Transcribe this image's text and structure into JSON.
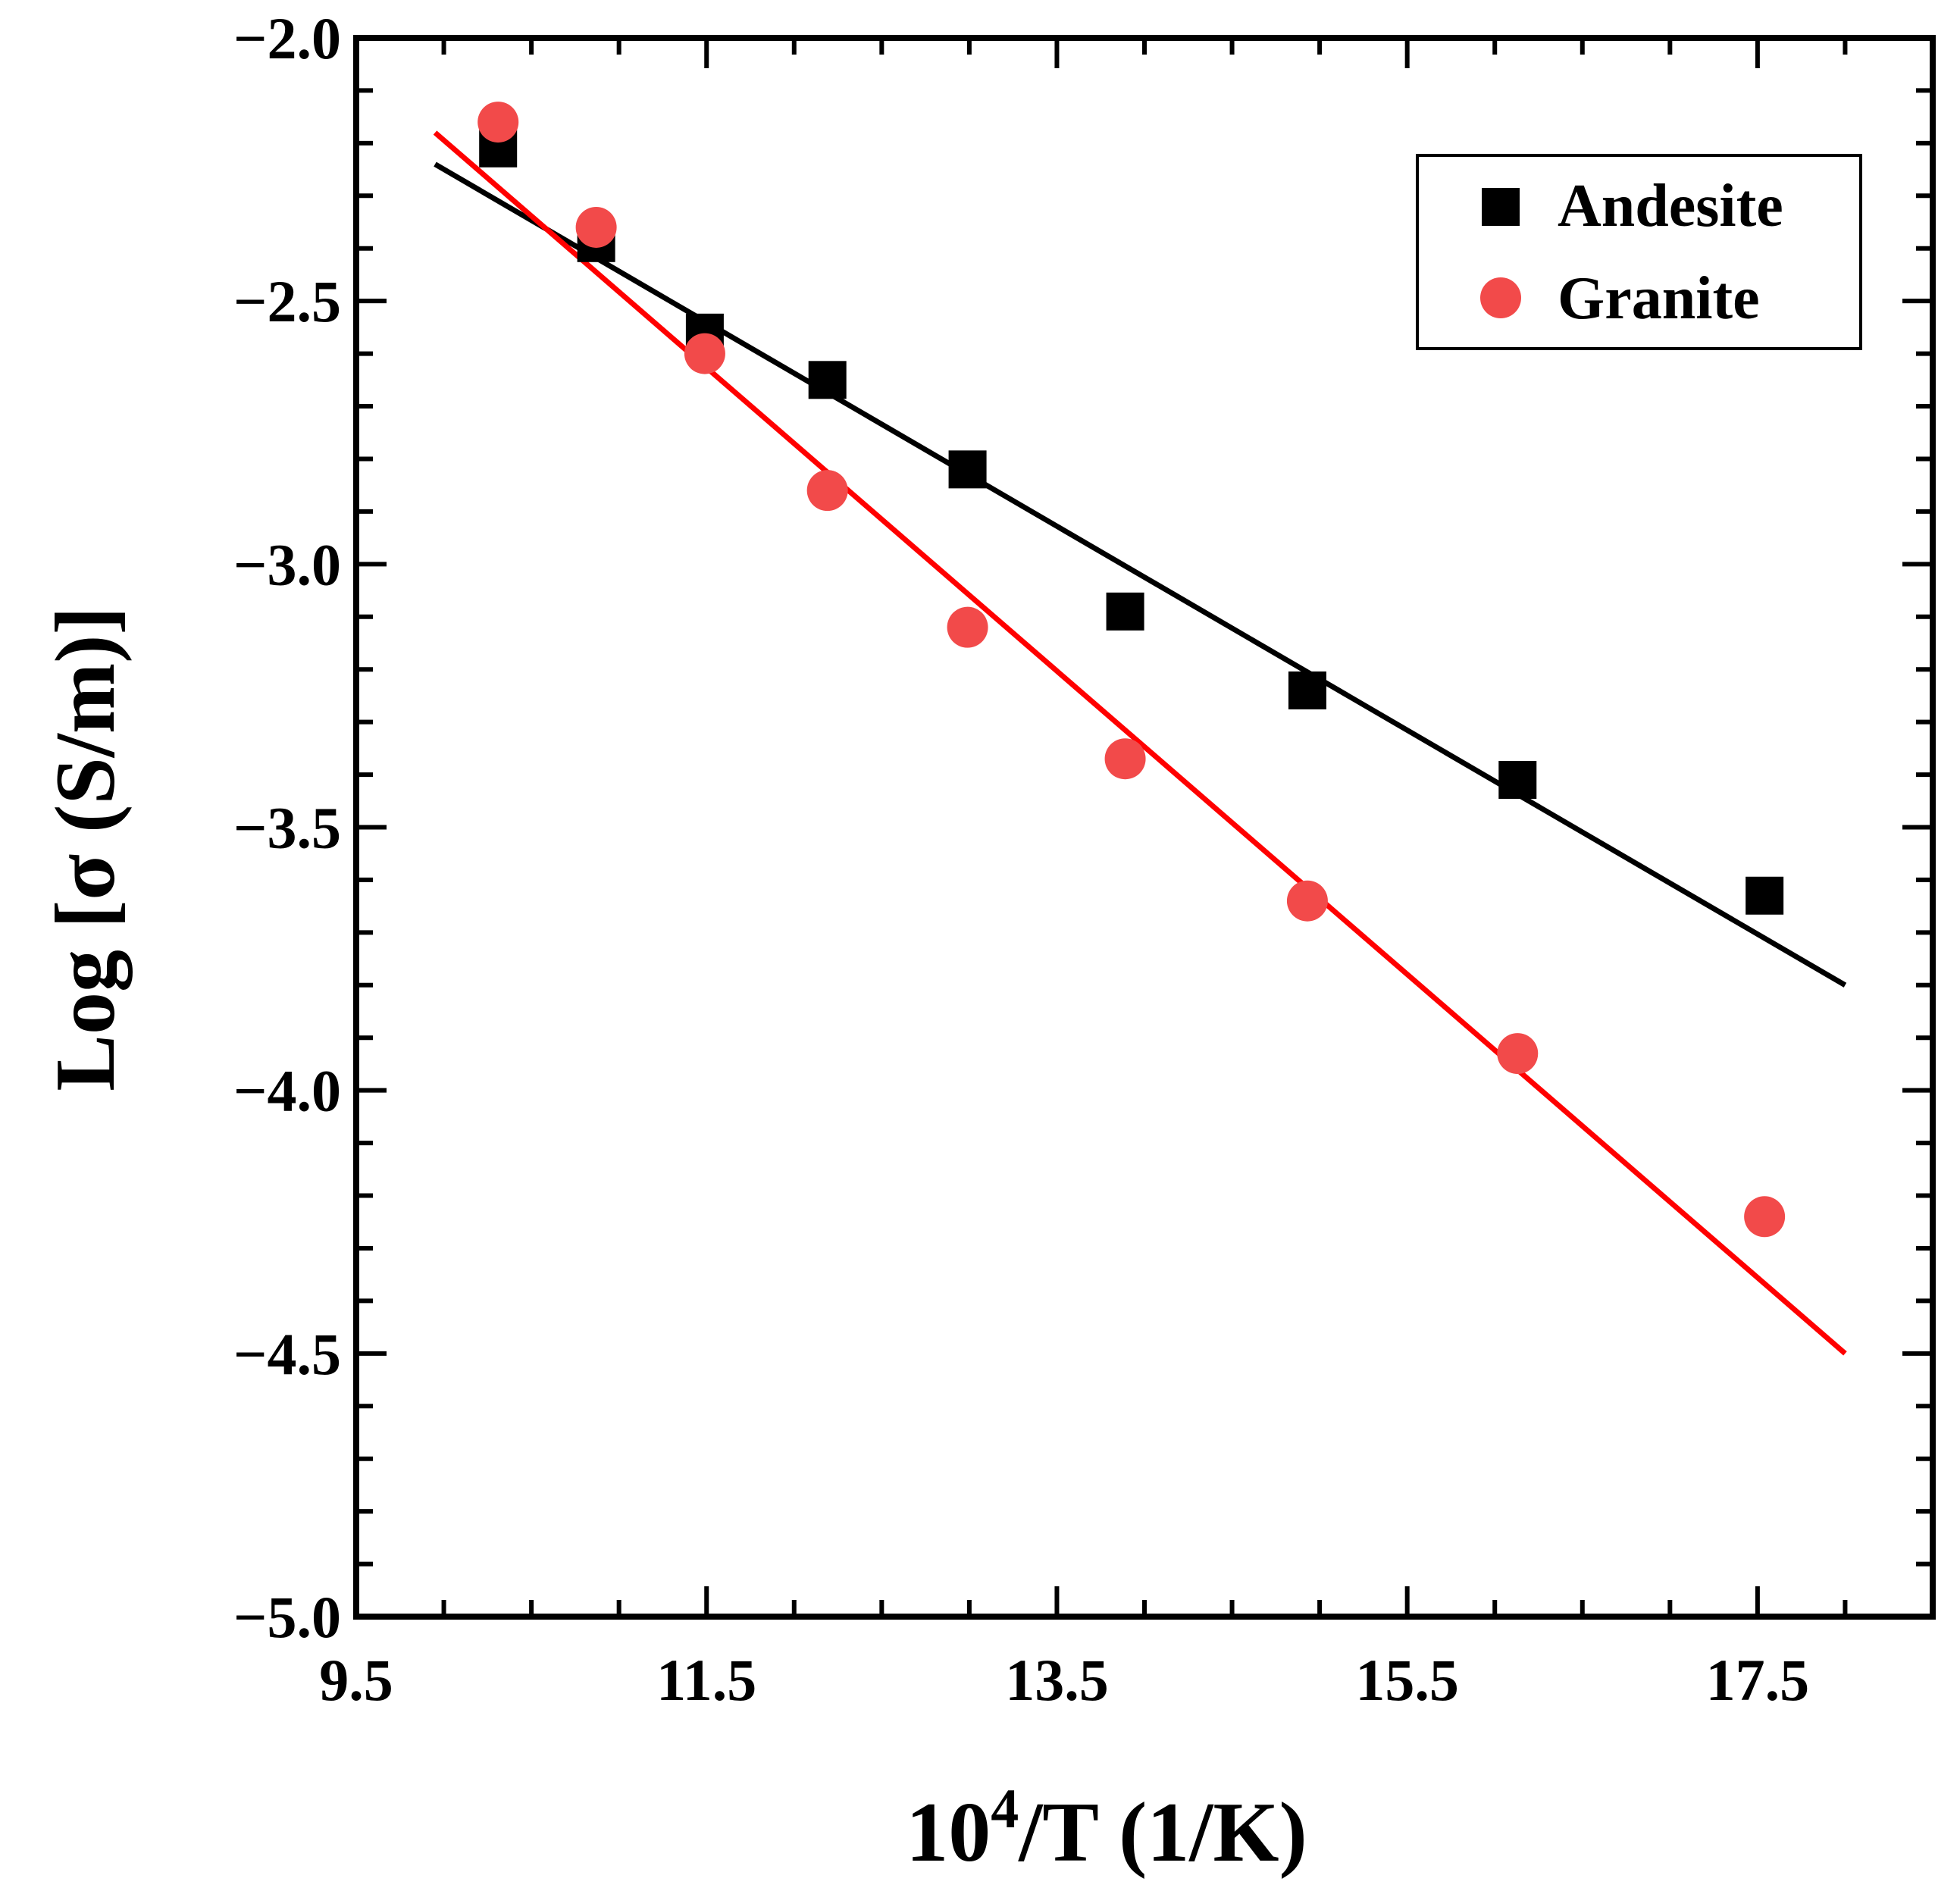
{
  "chart_data": {
    "type": "scatter",
    "title": "",
    "xlabel_base": "10",
    "xlabel_sup": "4",
    "xlabel_rest": "/T (1/K)",
    "ylabel": "Log [σ (S/m)]",
    "xlim": [
      9.5,
      18.5
    ],
    "ylim": [
      -5.0,
      -2.0
    ],
    "xticks": [
      9.5,
      11.5,
      13.5,
      15.5,
      17.5
    ],
    "xtick_labels": [
      "9.5",
      "11.5",
      "13.5",
      "15.5",
      "17.5"
    ],
    "yticks": [
      -2.0,
      -2.5,
      -3.0,
      -3.5,
      -4.0,
      -4.5,
      -5.0
    ],
    "ytick_labels": [
      "−2.0",
      "−2.5",
      "−3.0",
      "−3.5",
      "−4.0",
      "−4.5",
      "−5.0"
    ],
    "legend_position": "top-right",
    "series": [
      {
        "name": "Andesite",
        "marker": "square",
        "color": "#000000",
        "x": [
          10.31,
          10.87,
          11.49,
          12.19,
          12.99,
          13.89,
          14.93,
          16.13,
          17.54
        ],
        "y": [
          -2.21,
          -2.39,
          -2.56,
          -2.65,
          -2.82,
          -3.09,
          -3.24,
          -3.41,
          -3.63
        ],
        "fit": {
          "x": [
            9.95,
            18.0
          ],
          "y": [
            -2.24,
            -3.8
          ],
          "color": "#000000"
        }
      },
      {
        "name": "Granite",
        "marker": "circle",
        "color": "#f24a4a",
        "x": [
          10.31,
          10.87,
          11.49,
          12.19,
          12.99,
          13.89,
          14.93,
          16.13,
          17.54
        ],
        "y": [
          -2.16,
          -2.36,
          -2.6,
          -2.86,
          -3.12,
          -3.37,
          -3.64,
          -3.93,
          -4.24
        ],
        "fit": {
          "x": [
            9.95,
            18.0
          ],
          "y": [
            -2.18,
            -4.5
          ],
          "color": "#ff0000"
        }
      }
    ]
  }
}
